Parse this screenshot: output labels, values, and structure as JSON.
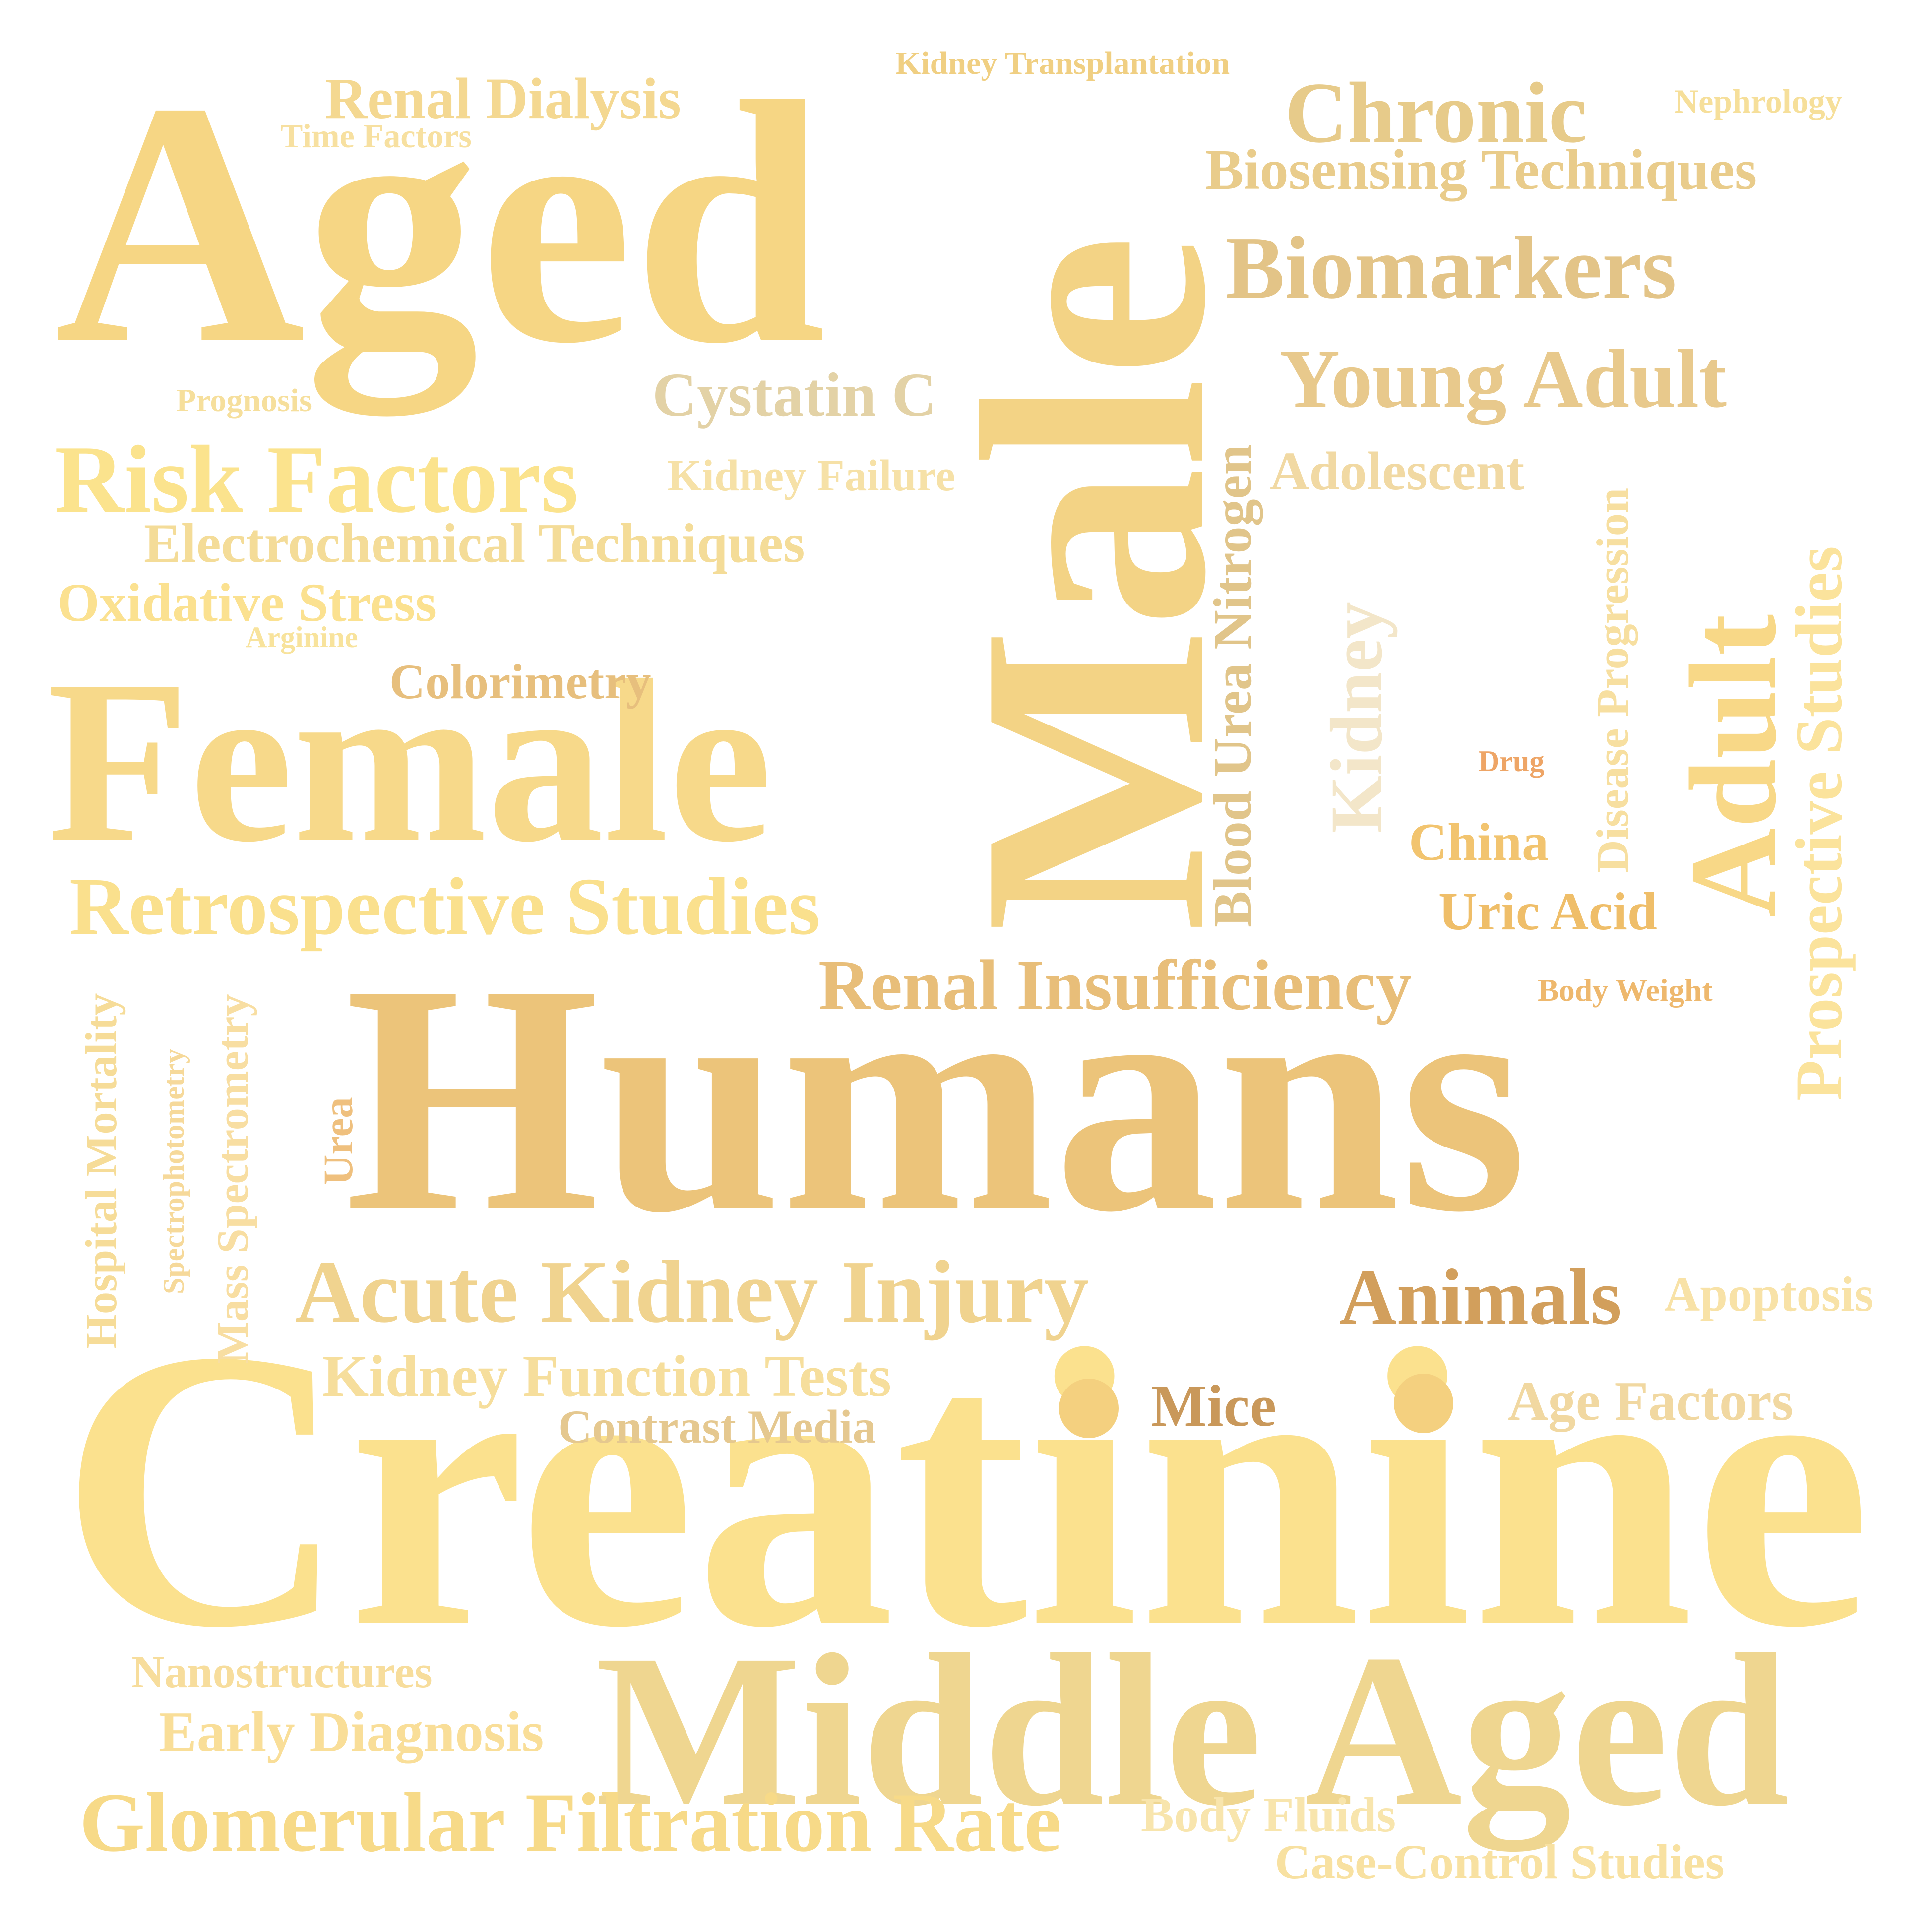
{
  "words": [
    {
      "id": "aged",
      "text": "Aged",
      "color": "#f6d684"
    },
    {
      "id": "male",
      "text": "Male",
      "color": "#f3d385"
    },
    {
      "id": "female",
      "text": "Female",
      "color": "#f7d98a"
    },
    {
      "id": "humans",
      "text": "Humans",
      "color": "#ecc47a"
    },
    {
      "id": "creatinine",
      "text": "Creatinine",
      "color": "#fbe18e"
    },
    {
      "id": "middle-aged",
      "text": "Middle Aged",
      "color": "#efd690"
    },
    {
      "id": "renal-dialysis",
      "text": "Renal Dialysis",
      "color": "#f4d891"
    },
    {
      "id": "time-factors",
      "text": "Time Factors",
      "color": "#f7e0a0"
    },
    {
      "id": "kidney-transplantation",
      "text": "Kidney Transplantation",
      "color": "#f0cf82"
    },
    {
      "id": "chronic",
      "text": "Chronic",
      "color": "#e7cb8a"
    },
    {
      "id": "nephrology",
      "text": "Nephrology",
      "color": "#f6df9a"
    },
    {
      "id": "biosensing-techniques",
      "text": "Biosensing Techniques",
      "color": "#e9cc8b"
    },
    {
      "id": "biomarkers",
      "text": "Biomarkers",
      "color": "#e3c487"
    },
    {
      "id": "young-adult",
      "text": "Young Adult",
      "color": "#e8c98c"
    },
    {
      "id": "prognosis",
      "text": "Prognosis",
      "color": "#f6df9c"
    },
    {
      "id": "cystatin-c",
      "text": "Cystatin C",
      "color": "#e3d2a6"
    },
    {
      "id": "risk-factors",
      "text": "Risk Factors",
      "color": "#fbe38d"
    },
    {
      "id": "kidney-failure",
      "text": "Kidney Failure",
      "color": "#f6e1a7"
    },
    {
      "id": "adolescent",
      "text": "Adolescent",
      "color": "#f1d9a3"
    },
    {
      "id": "electrochemical-techniques",
      "text": "Electrochemical Techniques",
      "color": "#f4dc98"
    },
    {
      "id": "oxidative-stress",
      "text": "Oxidative Stress",
      "color": "#fbe190"
    },
    {
      "id": "arginine",
      "text": "Arginine",
      "color": "#f8e39c"
    },
    {
      "id": "colorimetry",
      "text": "Colorimetry",
      "color": "#e7bf7d"
    },
    {
      "id": "blood-urea-nitrogen",
      "text": "Blood Urea Nitrogen",
      "color": "#e1c58a"
    },
    {
      "id": "kidney",
      "text": "Kidney",
      "color": "#f3e6c9"
    },
    {
      "id": "disease-progression",
      "text": "Disease Progression",
      "color": "#f7dfa0"
    },
    {
      "id": "adult",
      "text": "Adult",
      "color": "#f8d887"
    },
    {
      "id": "prospective-studies",
      "text": "Prospective Studies",
      "color": "#fbe39c"
    },
    {
      "id": "drug",
      "text": "Drug",
      "color": "#eea566"
    },
    {
      "id": "china",
      "text": "China",
      "color": "#f2c46f"
    },
    {
      "id": "uric-acid",
      "text": "Uric Acid",
      "color": "#efbe69"
    },
    {
      "id": "retrospective-studies",
      "text": "Retrospective Studies",
      "color": "#fae08d"
    },
    {
      "id": "renal-insufficiency",
      "text": "Renal Insufficiency",
      "color": "#e8be79"
    },
    {
      "id": "body-weight",
      "text": "Body Weight",
      "color": "#eeb86d"
    },
    {
      "id": "hospital-mortality",
      "text": "Hospital Mortality",
      "color": "#f6dc98"
    },
    {
      "id": "spectrophotometry",
      "text": "Spectrophotometry",
      "color": "#f6d99a"
    },
    {
      "id": "mass-spectrometry",
      "text": "Mass Spectrometry",
      "color": "#f8dea2"
    },
    {
      "id": "urea",
      "text": "Urea",
      "color": "#efc07e"
    },
    {
      "id": "acute-kidney-injury",
      "text": "Acute Kidney Injury",
      "color": "#f0d38f"
    },
    {
      "id": "animals",
      "text": "Animals",
      "color": "#d29f5c"
    },
    {
      "id": "apoptosis",
      "text": "Apoptosis",
      "color": "#f8e2a7"
    },
    {
      "id": "kidney-function-tests",
      "text": "Kidney Function Tests",
      "color": "#f6de9c"
    },
    {
      "id": "contrast-media",
      "text": "Contrast Media",
      "color": "#e5c88f"
    },
    {
      "id": "mice",
      "text": "Mice",
      "color": "#c9985a"
    },
    {
      "id": "age-factors",
      "text": "Age Factors",
      "color": "#f1d8a1"
    },
    {
      "id": "nanostructures",
      "text": "Nanostructures",
      "color": "#f7dd9c"
    },
    {
      "id": "early-diagnosis",
      "text": "Early Diagnosis",
      "color": "#f9de98"
    },
    {
      "id": "glomerular-filtration-rate",
      "text": "Glomerular Filtration Rate",
      "color": "#f7da88"
    },
    {
      "id": "body-fluids",
      "text": "Body Fluids",
      "color": "#f8e5ad"
    },
    {
      "id": "case-control-studies",
      "text": "Case-Control Studies",
      "color": "#f8e1a1"
    }
  ],
  "dots": [
    {
      "id": "left-dot",
      "color": "#f4d07f"
    },
    {
      "id": "right-dot",
      "color": "#f4d07f"
    }
  ]
}
